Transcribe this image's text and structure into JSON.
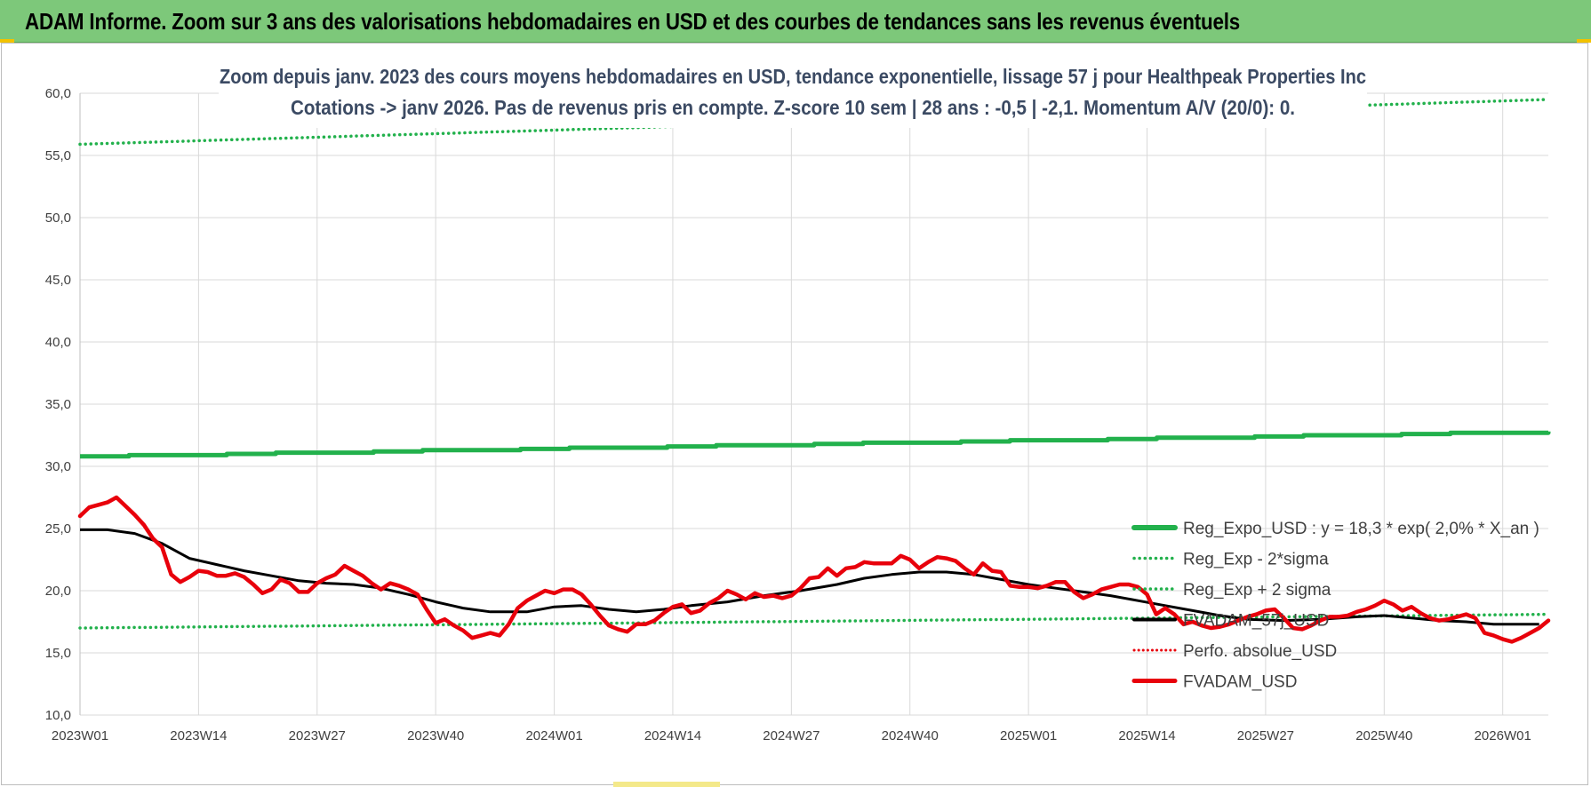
{
  "banner": {
    "title": "ADAM Informe. Zoom sur 3 ans des valorisations hebdomadaires en USD et des courbes de tendances sans les revenus éventuels"
  },
  "colors": {
    "banner_bg": "#7dc87a",
    "reg_expo": "#22b14c",
    "sigma_bands": "#22b14c",
    "fvadam": "#e8000b",
    "smoothing": "#000000",
    "perfo": "#e8000b",
    "title_text": "#3b4a63",
    "grid": "#d9d9d9"
  },
  "chart_data": {
    "type": "line",
    "title_lines": [
      "Zoom depuis janv. 2023 des cours moyens hebdomadaires en USD, tendance exponentielle, lissage 57 j pour Healthpeak Properties Inc",
      "Cotations -> janv 2026. Pas de revenus pris en compte. Z-score 10 sem | 28 ans : -0,5 | -2,1. Momentum A/V (20/0): 0."
    ],
    "xlabel": "",
    "ylabel": "",
    "ylim": [
      10,
      60
    ],
    "y_ticks": [
      "10,0",
      "15,0",
      "20,0",
      "25,0",
      "30,0",
      "35,0",
      "40,0",
      "45,0",
      "50,0",
      "55,0",
      "60,0"
    ],
    "x_weeks_total": 162,
    "x_ticks": [
      {
        "week": 1,
        "label": "2023W01"
      },
      {
        "week": 14,
        "label": "2023W14"
      },
      {
        "week": 27,
        "label": "2023W27"
      },
      {
        "week": 40,
        "label": "2023W40"
      },
      {
        "week": 53,
        "label": "2024W01"
      },
      {
        "week": 66,
        "label": "2024W14"
      },
      {
        "week": 79,
        "label": "2024W27"
      },
      {
        "week": 92,
        "label": "2024W40"
      },
      {
        "week": 105,
        "label": "2025W01"
      },
      {
        "week": 118,
        "label": "2025W14"
      },
      {
        "week": 131,
        "label": "2025W27"
      },
      {
        "week": 144,
        "label": "2025W40"
      },
      {
        "week": 157,
        "label": "2026W01"
      }
    ],
    "grid": true,
    "legend_position": "right",
    "series": [
      {
        "name": "Reg_Expo_USD : y = 18,3 * exp( 2,0% *  X_an )",
        "style": "solid-thick",
        "color": "#22b14c",
        "start": 30.8,
        "end": 32.8
      },
      {
        "name": "Reg_Exp - 2*sigma",
        "style": "dotted",
        "color": "#22b14c",
        "start": 17.0,
        "end": 18.1
      },
      {
        "name": "Reg_Exp + 2 sigma",
        "style": "dotted",
        "color": "#22b14c",
        "start": 55.9,
        "end": 59.5
      },
      {
        "name": "FVADAM_57j_USD",
        "style": "solid",
        "color": "#000000",
        "points": [
          [
            1,
            24.9
          ],
          [
            4,
            24.9
          ],
          [
            7,
            24.6
          ],
          [
            10,
            23.8
          ],
          [
            13,
            22.6
          ],
          [
            16,
            22.1
          ],
          [
            19,
            21.6
          ],
          [
            22,
            21.2
          ],
          [
            25,
            20.8
          ],
          [
            28,
            20.6
          ],
          [
            31,
            20.5
          ],
          [
            34,
            20.2
          ],
          [
            37,
            19.7
          ],
          [
            40,
            19.1
          ],
          [
            43,
            18.6
          ],
          [
            46,
            18.3
          ],
          [
            50,
            18.3
          ],
          [
            53,
            18.7
          ],
          [
            56,
            18.8
          ],
          [
            59,
            18.5
          ],
          [
            62,
            18.3
          ],
          [
            65,
            18.5
          ],
          [
            68,
            18.8
          ],
          [
            72,
            19.1
          ],
          [
            76,
            19.6
          ],
          [
            80,
            20.0
          ],
          [
            84,
            20.5
          ],
          [
            87,
            21.0
          ],
          [
            90,
            21.3
          ],
          [
            93,
            21.5
          ],
          [
            96,
            21.5
          ],
          [
            99,
            21.3
          ],
          [
            102,
            20.9
          ],
          [
            105,
            20.5
          ],
          [
            108,
            20.2
          ],
          [
            111,
            19.9
          ],
          [
            114,
            19.6
          ],
          [
            117,
            19.2
          ],
          [
            120,
            18.8
          ],
          [
            123,
            18.4
          ],
          [
            126,
            18.0
          ],
          [
            129,
            17.7
          ],
          [
            133,
            17.6
          ],
          [
            137,
            17.7
          ],
          [
            141,
            17.9
          ],
          [
            144,
            18.0
          ],
          [
            147,
            17.8
          ],
          [
            150,
            17.6
          ],
          [
            153,
            17.5
          ],
          [
            156,
            17.3
          ],
          [
            159,
            17.3
          ],
          [
            161,
            17.3
          ]
        ]
      },
      {
        "name": "Perfo. absolue_USD",
        "style": "dotted",
        "color": "#e8000b"
      },
      {
        "name": "FVADAM_USD",
        "style": "solid-thick",
        "color": "#e8000b",
        "points": [
          [
            1,
            26.0
          ],
          [
            2,
            26.7
          ],
          [
            3,
            26.9
          ],
          [
            4,
            27.1
          ],
          [
            5,
            27.5
          ],
          [
            6,
            26.8
          ],
          [
            7,
            26.1
          ],
          [
            8,
            25.3
          ],
          [
            9,
            24.2
          ],
          [
            10,
            23.5
          ],
          [
            11,
            21.3
          ],
          [
            12,
            20.7
          ],
          [
            13,
            21.1
          ],
          [
            14,
            21.6
          ],
          [
            15,
            21.5
          ],
          [
            16,
            21.2
          ],
          [
            17,
            21.2
          ],
          [
            18,
            21.4
          ],
          [
            19,
            21.1
          ],
          [
            20,
            20.5
          ],
          [
            21,
            19.8
          ],
          [
            22,
            20.1
          ],
          [
            23,
            20.9
          ],
          [
            24,
            20.6
          ],
          [
            25,
            19.9
          ],
          [
            26,
            19.9
          ],
          [
            27,
            20.6
          ],
          [
            28,
            21.0
          ],
          [
            29,
            21.3
          ],
          [
            30,
            22.0
          ],
          [
            31,
            21.6
          ],
          [
            32,
            21.2
          ],
          [
            33,
            20.6
          ],
          [
            34,
            20.1
          ],
          [
            35,
            20.6
          ],
          [
            36,
            20.4
          ],
          [
            37,
            20.1
          ],
          [
            38,
            19.7
          ],
          [
            39,
            18.5
          ],
          [
            40,
            17.4
          ],
          [
            41,
            17.7
          ],
          [
            42,
            17.2
          ],
          [
            43,
            16.8
          ],
          [
            44,
            16.2
          ],
          [
            45,
            16.4
          ],
          [
            46,
            16.6
          ],
          [
            47,
            16.4
          ],
          [
            48,
            17.3
          ],
          [
            49,
            18.6
          ],
          [
            50,
            19.2
          ],
          [
            51,
            19.6
          ],
          [
            52,
            20.0
          ],
          [
            53,
            19.8
          ],
          [
            54,
            20.1
          ],
          [
            55,
            20.1
          ],
          [
            56,
            19.7
          ],
          [
            57,
            18.9
          ],
          [
            58,
            18.0
          ],
          [
            59,
            17.2
          ],
          [
            60,
            16.9
          ],
          [
            61,
            16.7
          ],
          [
            62,
            17.3
          ],
          [
            63,
            17.3
          ],
          [
            64,
            17.6
          ],
          [
            65,
            18.2
          ],
          [
            66,
            18.7
          ],
          [
            67,
            18.9
          ],
          [
            68,
            18.2
          ],
          [
            69,
            18.4
          ],
          [
            70,
            19.0
          ],
          [
            71,
            19.4
          ],
          [
            72,
            20.0
          ],
          [
            73,
            19.7
          ],
          [
            74,
            19.3
          ],
          [
            75,
            19.8
          ],
          [
            76,
            19.5
          ],
          [
            77,
            19.6
          ],
          [
            78,
            19.4
          ],
          [
            79,
            19.6
          ],
          [
            80,
            20.2
          ],
          [
            81,
            21.0
          ],
          [
            82,
            21.1
          ],
          [
            83,
            21.8
          ],
          [
            84,
            21.2
          ],
          [
            85,
            21.8
          ],
          [
            86,
            21.9
          ],
          [
            87,
            22.3
          ],
          [
            88,
            22.2
          ],
          [
            89,
            22.2
          ],
          [
            90,
            22.2
          ],
          [
            91,
            22.8
          ],
          [
            92,
            22.5
          ],
          [
            93,
            21.8
          ],
          [
            94,
            22.3
          ],
          [
            95,
            22.7
          ],
          [
            96,
            22.6
          ],
          [
            97,
            22.4
          ],
          [
            98,
            21.8
          ],
          [
            99,
            21.3
          ],
          [
            100,
            22.2
          ],
          [
            101,
            21.6
          ],
          [
            102,
            21.5
          ],
          [
            103,
            20.4
          ],
          [
            104,
            20.3
          ],
          [
            105,
            20.3
          ],
          [
            106,
            20.2
          ],
          [
            107,
            20.4
          ],
          [
            108,
            20.7
          ],
          [
            109,
            20.7
          ],
          [
            110,
            19.9
          ],
          [
            111,
            19.4
          ],
          [
            112,
            19.7
          ],
          [
            113,
            20.1
          ],
          [
            114,
            20.3
          ],
          [
            115,
            20.5
          ],
          [
            116,
            20.5
          ],
          [
            117,
            20.3
          ],
          [
            118,
            19.7
          ],
          [
            119,
            18.1
          ],
          [
            120,
            18.6
          ],
          [
            121,
            18.1
          ],
          [
            122,
            17.3
          ],
          [
            123,
            17.5
          ],
          [
            124,
            17.2
          ],
          [
            125,
            17.0
          ],
          [
            126,
            17.1
          ],
          [
            127,
            17.3
          ],
          [
            128,
            17.6
          ],
          [
            129,
            17.9
          ],
          [
            130,
            18.1
          ],
          [
            131,
            18.4
          ],
          [
            132,
            18.5
          ],
          [
            133,
            17.8
          ],
          [
            134,
            17.0
          ],
          [
            135,
            16.9
          ],
          [
            136,
            17.2
          ],
          [
            137,
            17.6
          ],
          [
            138,
            17.9
          ],
          [
            139,
            17.9
          ],
          [
            140,
            18.0
          ],
          [
            141,
            18.3
          ],
          [
            142,
            18.5
          ],
          [
            143,
            18.8
          ],
          [
            144,
            19.2
          ],
          [
            145,
            18.9
          ],
          [
            146,
            18.4
          ],
          [
            147,
            18.7
          ],
          [
            148,
            18.2
          ],
          [
            149,
            17.8
          ],
          [
            150,
            17.6
          ],
          [
            151,
            17.7
          ],
          [
            152,
            17.9
          ],
          [
            153,
            18.1
          ],
          [
            154,
            17.8
          ],
          [
            155,
            16.6
          ],
          [
            156,
            16.4
          ],
          [
            157,
            16.1
          ],
          [
            158,
            15.9
          ],
          [
            159,
            16.2
          ],
          [
            160,
            16.6
          ],
          [
            161,
            17.0
          ],
          [
            162,
            17.6
          ]
        ]
      }
    ]
  }
}
